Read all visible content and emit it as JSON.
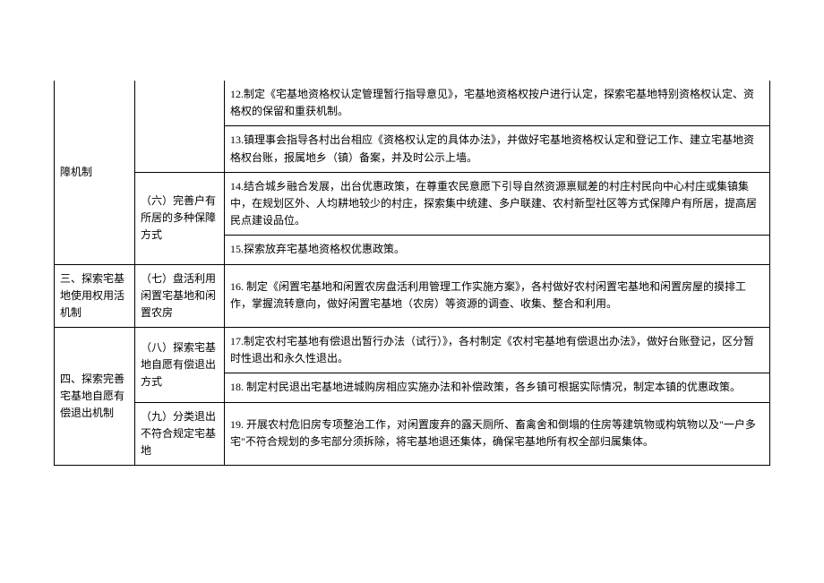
{
  "rows": {
    "r0c0": "障机制",
    "r0c2": "12.制定《宅基地资格权认定管理暂行指导意见》，宅基地资格权按户进行认定，探索宅基地特别资格权认定、资格权的保留和重获机制。",
    "r1c2": "13.镇理事会指导各村出台相应《资格权认定的具体办法》，并做好宅基地资格权认定和登记工作、建立宅基地资格权台账，报属地乡（镇）备案，并及时公示上墙。",
    "r2c1": "（六）完善户有所居的多种保障方式",
    "r2c2": "14.结合城乡融合发展，出台优惠政策，在尊重农民意愿下引导自然资源禀赋差的村庄村民向中心村庄或集镇集中，在规划区外、人均耕地较少的村庄，探索集中统建、多户联建、农村新型社区等方式保障户有所居，提高居民点建设品位。",
    "r3c2": "15.探索放弃宅基地资格权优惠政策。",
    "r4c0": "三、探索宅基地使用权用活机制",
    "r4c1": "（七）盘活利用闲置宅基地和闲置农房",
    "r4c2": "16. 制定《闲置宅基地和闲置农房盘活利用管理工作实施方案》，各村做好农村闲置宅基地和闲置房屋的摸排工作，掌握流转意向，做好闲置宅基地（农房）等资源的调查、收集、整合和利用。",
    "r5c0": "四、探索完善宅基地自愿有偿退出机制",
    "r5c1": "（八）探索宅基地自愿有偿退出方式",
    "r5c2": "17.制定农村宅基地有偿退出暂行办法（试行）》，各村制定《农村宅基地有偿退出办法》，做好台账登记，区分暂时性退出和永久性退出。",
    "r6c2": "18. 制定村民退出宅基地进城购房相应实施办法和补偿政策，各乡镇可根据实际情况，制定本镇的优惠政策。",
    "r7c1": "（九）分类退出不符合规定宅基地",
    "r7c2": "19. 开展农村危旧房专项整治工作，对闲置废弃的露天厕所、畜禽舍和倒塌的住房等建筑物或构筑物以及\"一户多宅\"不符合规划的多宅部分须拆除，将宅基地退还集体，确保宅基地所有权全部归属集体。"
  }
}
